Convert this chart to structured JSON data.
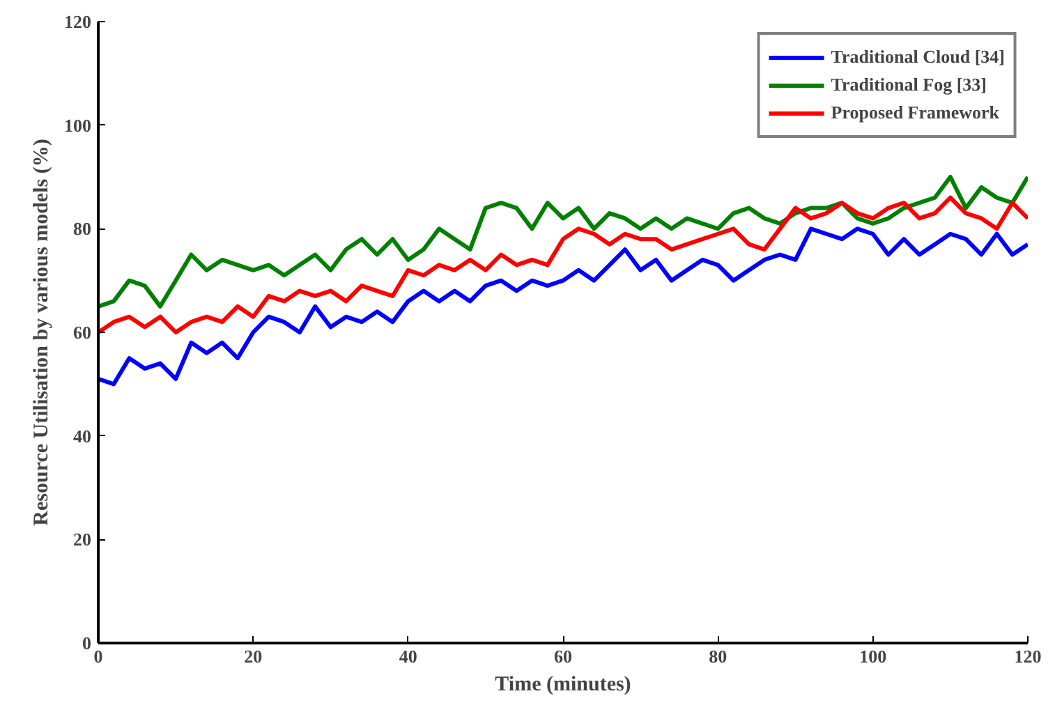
{
  "chart_data": {
    "type": "line",
    "xlabel": "Time (minutes)",
    "ylabel": "Resource Utilisation by various models (%)",
    "x": [
      0,
      2,
      4,
      6,
      8,
      10,
      12,
      14,
      16,
      18,
      20,
      22,
      24,
      26,
      28,
      30,
      32,
      34,
      36,
      38,
      40,
      42,
      44,
      46,
      48,
      50,
      52,
      54,
      56,
      58,
      60,
      62,
      64,
      66,
      68,
      70,
      72,
      74,
      76,
      78,
      80,
      82,
      84,
      86,
      88,
      90,
      92,
      94,
      96,
      98,
      100,
      102,
      104,
      106,
      108,
      110,
      112,
      114,
      116,
      118,
      120
    ],
    "series": [
      {
        "name": "Traditional Cloud [34]",
        "color": "#0000ff",
        "values": [
          51,
          50,
          55,
          53,
          54,
          51,
          58,
          56,
          58,
          55,
          60,
          63,
          62,
          60,
          65,
          61,
          63,
          62,
          64,
          62,
          66,
          68,
          66,
          68,
          66,
          69,
          70,
          68,
          70,
          69,
          70,
          72,
          70,
          73,
          76,
          72,
          74,
          70,
          72,
          74,
          73,
          70,
          72,
          74,
          75,
          74,
          80,
          79,
          78,
          80,
          79,
          75,
          78,
          75,
          77,
          79,
          78,
          75,
          79,
          75,
          77
        ]
      },
      {
        "name": "Traditional Fog [33]",
        "color": "#008000",
        "values": [
          65,
          66,
          70,
          69,
          65,
          70,
          75,
          72,
          74,
          73,
          72,
          73,
          71,
          73,
          75,
          72,
          76,
          78,
          75,
          78,
          74,
          76,
          80,
          78,
          76,
          84,
          85,
          84,
          80,
          85,
          82,
          84,
          80,
          83,
          82,
          80,
          82,
          80,
          82,
          81,
          80,
          83,
          84,
          82,
          81,
          83,
          84,
          84,
          85,
          82,
          81,
          82,
          84,
          85,
          86,
          90,
          84,
          88,
          86,
          85,
          90
        ]
      },
      {
        "name": "Proposed Framework",
        "color": "#ff0000",
        "values": [
          60,
          62,
          63,
          61,
          63,
          60,
          62,
          63,
          62,
          65,
          63,
          67,
          66,
          68,
          67,
          68,
          66,
          69,
          68,
          67,
          72,
          71,
          73,
          72,
          74,
          72,
          75,
          73,
          74,
          73,
          78,
          80,
          79,
          77,
          79,
          78,
          78,
          76,
          77,
          78,
          79,
          80,
          77,
          76,
          80,
          84,
          82,
          83,
          85,
          83,
          82,
          84,
          85,
          82,
          83,
          86,
          83,
          82,
          80,
          85,
          82
        ]
      }
    ],
    "xlim": [
      0,
      120
    ],
    "ylim": [
      0,
      120
    ],
    "xticks": [
      0,
      20,
      40,
      60,
      80,
      100,
      120
    ],
    "yticks": [
      0,
      20,
      40,
      60,
      80,
      100,
      120
    ],
    "legend": "top right",
    "line_style": "solid",
    "marker": "none"
  }
}
